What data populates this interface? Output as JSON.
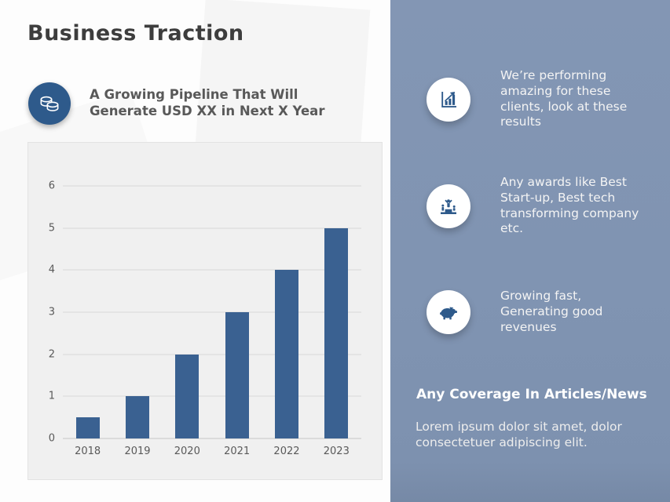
{
  "slide": {
    "title": "Business Traction",
    "pipeline_headline": "A Growing Pipeline That Will\nGenerate USD XX in Next X Year"
  },
  "chart_data": {
    "type": "bar",
    "title": "",
    "categories": [
      "2018",
      "2019",
      "2020",
      "2021",
      "2022",
      "2023"
    ],
    "values": [
      0.5,
      1,
      2,
      3,
      4,
      5
    ],
    "xlabel": "",
    "ylabel": "",
    "ylim": [
      0,
      6
    ],
    "yticks": [
      0,
      1,
      2,
      3,
      4,
      5,
      6
    ],
    "grid": true,
    "legend": false,
    "bar_color": "#3a6191",
    "plot_bg": "#f0f0f0"
  },
  "right_panel": {
    "items": [
      {
        "icon": "growth-chart-icon",
        "text": "We’re performing\namazing for these\nclients, look at these\nresults"
      },
      {
        "icon": "award-podium-icon",
        "text": "Any awards like Best\nStart-up, Best tech\ntransforming company\netc."
      },
      {
        "icon": "piggy-bank-icon",
        "text": "Growing fast,\nGenerating good\nrevenues"
      }
    ],
    "coverage_heading": "Any Coverage In Articles/News",
    "coverage_body": "Lorem ipsum dolor sit amet, dolor\nconsectetuer adipiscing elit."
  },
  "colors": {
    "accent_dark_blue": "#2e5a8b",
    "bar_blue": "#3a6191",
    "panel_blue": "#8094b2",
    "title_gray": "#3d3d3d",
    "body_gray": "#595959",
    "chart_panel_bg": "#f0f0f0",
    "gridline_gray": "#d9d9d9"
  }
}
